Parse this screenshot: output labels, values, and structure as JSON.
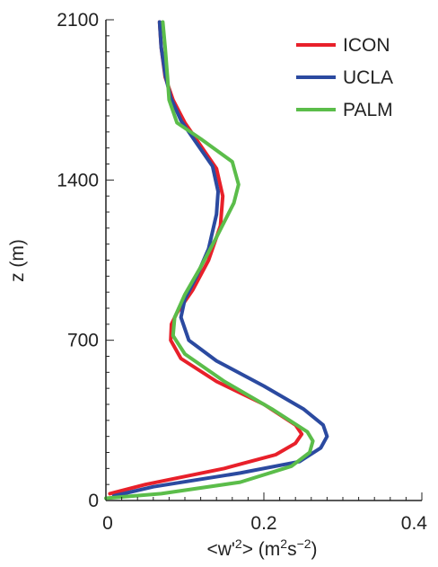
{
  "chart_data": {
    "type": "line",
    "title": "",
    "xlabel": "<w'2> (m2s-2)",
    "ylabel": "z (m)",
    "xlim": [
      0,
      0.4
    ],
    "ylim": [
      0,
      2100
    ],
    "xticks": [
      0,
      0.2,
      0.4
    ],
    "xtick_labels": [
      "0",
      "0.2",
      "0.4"
    ],
    "yticks": [
      0,
      700,
      1400,
      2100
    ],
    "ytick_labels": [
      "0",
      "700",
      "1400",
      "2100"
    ],
    "grid": false,
    "legend_position": "top-right",
    "series": [
      {
        "name": "ICON",
        "color": "#e8202a",
        "x": [
          0.005,
          0.05,
          0.15,
          0.215,
          0.24,
          0.248,
          0.24,
          0.2,
          0.14,
          0.095,
          0.082,
          0.083,
          0.09,
          0.11,
          0.13,
          0.145,
          0.148,
          0.14,
          0.12,
          0.1,
          0.085,
          0.075,
          0.07,
          0.068
        ],
        "y": [
          30,
          70,
          140,
          200,
          250,
          290,
          330,
          420,
          520,
          620,
          700,
          770,
          820,
          920,
          1050,
          1200,
          1330,
          1450,
          1550,
          1650,
          1750,
          1850,
          1980,
          2090
        ]
      },
      {
        "name": "UCLA",
        "color": "#2b4aa0",
        "x": [
          0.01,
          0.06,
          0.17,
          0.245,
          0.272,
          0.28,
          0.275,
          0.25,
          0.2,
          0.14,
          0.105,
          0.095,
          0.1,
          0.115,
          0.13,
          0.14,
          0.142,
          0.135,
          0.115,
          0.095,
          0.082,
          0.075,
          0.07,
          0.068
        ],
        "y": [
          20,
          60,
          120,
          170,
          230,
          280,
          330,
          400,
          500,
          610,
          700,
          800,
          880,
          980,
          1100,
          1250,
          1350,
          1460,
          1560,
          1660,
          1760,
          1860,
          1980,
          2090
        ]
      },
      {
        "name": "PALM",
        "color": "#5bbd4a",
        "x": [
          0.0,
          0.07,
          0.17,
          0.235,
          0.258,
          0.262,
          0.255,
          0.21,
          0.15,
          0.1,
          0.085,
          0.087,
          0.1,
          0.12,
          0.14,
          0.162,
          0.168,
          0.16,
          0.12,
          0.09,
          0.08,
          0.078,
          0.075,
          0.072
        ],
        "y": [
          10,
          30,
          80,
          150,
          210,
          260,
          300,
          400,
          520,
          640,
          720,
          800,
          900,
          1020,
          1150,
          1300,
          1380,
          1480,
          1580,
          1650,
          1750,
          1850,
          1980,
          2090
        ]
      }
    ]
  }
}
